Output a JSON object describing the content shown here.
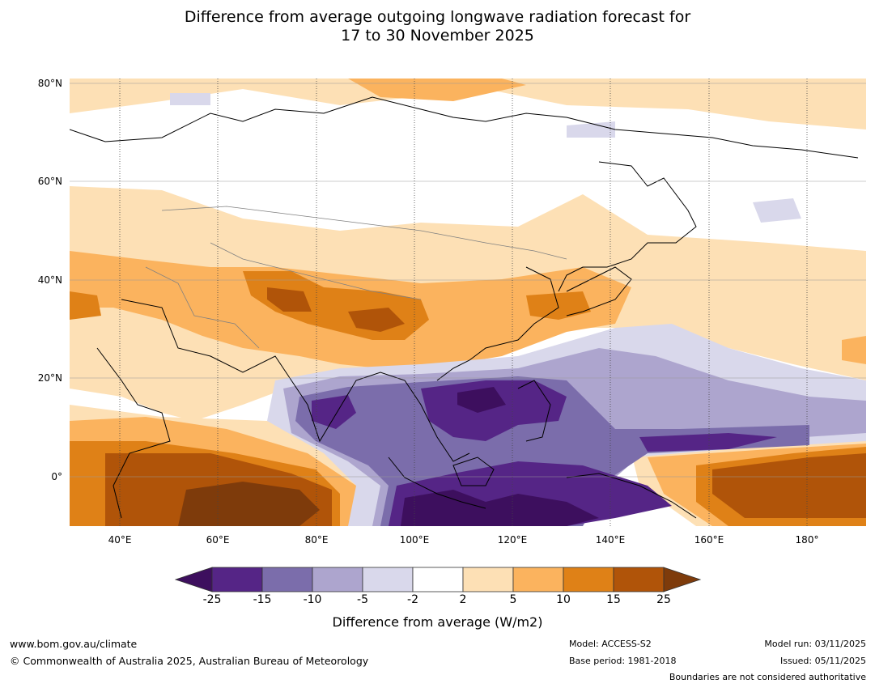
{
  "title": {
    "line1": "Difference from average outgoing longwave radiation forecast for",
    "line2": "17 to 30 November 2025"
  },
  "axes": {
    "lat_labels": [
      "80°N",
      "60°N",
      "40°N",
      "20°N",
      "0°"
    ],
    "lon_labels": [
      "40°E",
      "60°E",
      "80°E",
      "100°E",
      "120°E",
      "140°E",
      "160°E",
      "180°"
    ]
  },
  "colorbar": {
    "ticks": [
      "-25",
      "-15",
      "-10",
      "-5",
      "-2",
      "2",
      "5",
      "10",
      "15",
      "25"
    ],
    "colors": [
      "#3d0f5e",
      "#552586",
      "#7b6dab",
      "#ada5ce",
      "#d9d8eb",
      "#ffffff",
      "#fde0b5",
      "#fbb35e",
      "#df8117",
      "#b05409",
      "#7e3b0b"
    ],
    "label": "Difference from average (W/m2)"
  },
  "footer": {
    "url": "www.bom.gov.au/climate",
    "copyright": "© Commonwealth of Australia 2025, Australian Bureau of Meteorology",
    "model": "Model: ACCESS-S2",
    "base_period": "Base period: 1981-2018",
    "model_run": "Model run: 03/11/2025",
    "issued": "Issued: 05/11/2025",
    "boundaries": "Boundaries are not considered authoritative"
  }
}
